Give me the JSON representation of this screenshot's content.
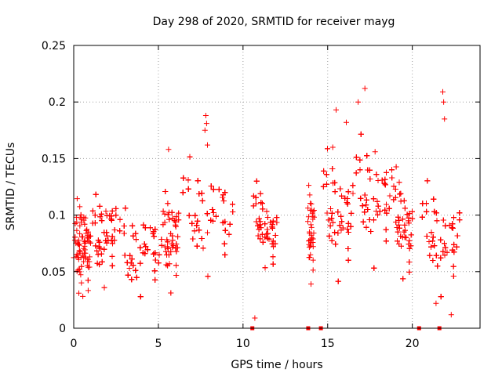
{
  "chart_data": {
    "type": "scatter",
    "title": "Day 298 of 2020, SRMTID for receiver mayg",
    "xlabel": "GPS time / hours",
    "ylabel": "SRMTID / TECUs",
    "xlim": [
      0,
      24
    ],
    "ylim": [
      0,
      0.25
    ],
    "xticks": [
      0,
      5,
      10,
      15,
      20
    ],
    "xtick_labels": [
      "0",
      "5",
      "10",
      "15",
      "20"
    ],
    "yticks": [
      0,
      0.05,
      0.1,
      0.15,
      0.2,
      0.25
    ],
    "ytick_labels": [
      "0",
      "0.05",
      "0.1",
      "0.15",
      "0.2",
      "0.25"
    ],
    "grid": true,
    "marker": "+",
    "color": "#ff0000",
    "series": [
      {
        "name": "SRMTID",
        "segments": [
          {
            "t_start": 0.0,
            "t_end": 1.0,
            "base": 0.062,
            "spread": 0.03
          },
          {
            "t_start": 1.0,
            "t_end": 2.5,
            "base": 0.08,
            "spread": 0.028
          },
          {
            "t_start": 2.5,
            "t_end": 5.2,
            "base": 0.065,
            "spread": 0.026
          },
          {
            "t_start": 5.2,
            "t_end": 6.2,
            "base": 0.08,
            "spread": 0.03
          },
          {
            "t_start": 6.2,
            "t_end": 9.4,
            "base": 0.095,
            "spread": 0.032
          },
          {
            "t_start": 10.5,
            "t_end": 12.0,
            "base": 0.088,
            "spread": 0.022
          },
          {
            "t_start": 13.8,
            "t_end": 14.2,
            "base": 0.085,
            "spread": 0.03
          },
          {
            "t_start": 14.6,
            "t_end": 16.5,
            "base": 0.098,
            "spread": 0.035
          },
          {
            "t_start": 16.5,
            "t_end": 18.8,
            "base": 0.11,
            "spread": 0.035
          },
          {
            "t_start": 18.8,
            "t_end": 20.0,
            "base": 0.09,
            "spread": 0.03
          },
          {
            "t_start": 20.4,
            "t_end": 22.8,
            "base": 0.075,
            "spread": 0.03
          }
        ],
        "highlights": [
          {
            "t": 7.8,
            "v": 0.188
          },
          {
            "t": 7.85,
            "v": 0.181
          },
          {
            "t": 7.75,
            "v": 0.175
          },
          {
            "t": 7.9,
            "v": 0.162
          },
          {
            "t": 15.5,
            "v": 0.193
          },
          {
            "t": 17.2,
            "v": 0.212
          },
          {
            "t": 16.8,
            "v": 0.2
          },
          {
            "t": 21.8,
            "v": 0.209
          },
          {
            "t": 21.9,
            "v": 0.185
          },
          {
            "t": 21.85,
            "v": 0.2
          },
          {
            "t": 10.7,
            "v": 0.009
          },
          {
            "t": 21.4,
            "v": 0.022
          },
          {
            "t": 22.3,
            "v": 0.012
          },
          {
            "t": 0.3,
            "v": 0.031
          },
          {
            "t": 5.6,
            "v": 0.158
          },
          {
            "t": 15.3,
            "v": 0.16
          },
          {
            "t": 16.1,
            "v": 0.182
          },
          {
            "t": 17.8,
            "v": 0.156
          }
        ]
      }
    ],
    "zero_markers": [
      10.55,
      13.85,
      14.6,
      20.4,
      21.6
    ]
  }
}
